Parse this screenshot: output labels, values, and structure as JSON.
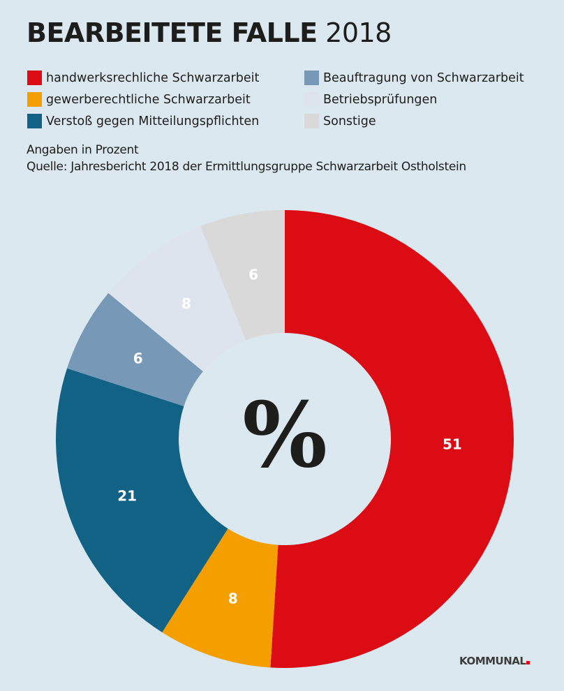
{
  "header": {
    "title_bold": "BEARBEITETE FALLE",
    "title_year": "2018"
  },
  "notes": {
    "unit": "Angaben in Prozent",
    "source": "Quelle: Jahresbericht 2018 der Ermittlungsgruppe Schwarzarbeit Ostholstein"
  },
  "logo": {
    "text": "KOMMUNAL"
  },
  "chart_data": {
    "type": "pie",
    "subtype": "donut",
    "title": "BEARBEITETE FALLE 2018",
    "center_label": "%",
    "unit": "Prozent",
    "legend_position": "top",
    "slices": [
      {
        "label": "handwerksrechliche Schwarzarbeit",
        "value": 51,
        "color": "#dc0c15"
      },
      {
        "label": "gewerberechtliche Schwarzarbeit",
        "value": 8,
        "color": "#f49e00"
      },
      {
        "label": "Verstoß gegen Mitteilungspflichten",
        "value": 21,
        "color": "#126286"
      },
      {
        "label": "Beauftragung von Schwarzarbeit",
        "value": 6,
        "color": "#7799b7"
      },
      {
        "label": "Betriebsprüfungen",
        "value": 8,
        "color": "#dde4ee"
      },
      {
        "label": "Sonstige",
        "value": 6,
        "color": "#d9d9d9"
      }
    ]
  }
}
